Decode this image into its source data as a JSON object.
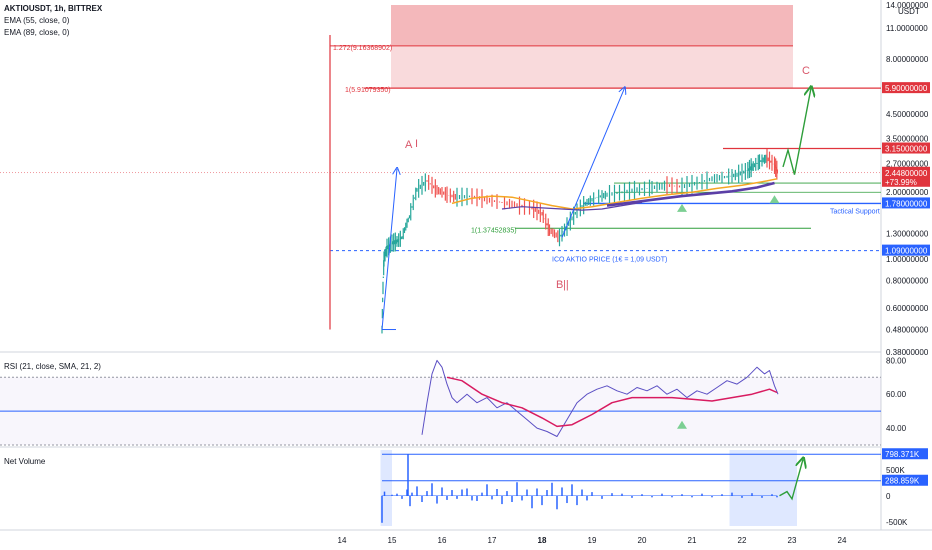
{
  "header": {
    "symbol_line": "AKTIOUSDT, 1h, BITTREX",
    "ema1": "EMA (55, close, 0)",
    "ema2": "EMA (89, close, 0)",
    "currency": "USDT"
  },
  "colors": {
    "red": "#e0343d",
    "blue": "#2962ff",
    "green": "#2e9e3a",
    "orange": "#f5a623",
    "purple": "#5b3fa6",
    "rsi_line": "#5b4fc4",
    "rsi_ma": "#d81b60",
    "volume": "#2962ff"
  },
  "chart_data": [
    {
      "type": "line",
      "name": "price",
      "scale": "log",
      "ylim": [
        0.38,
        14
      ],
      "x_ticks": [
        "14",
        "15",
        "16",
        "17",
        "18",
        "19",
        "20",
        "21",
        "22",
        "23",
        "24"
      ],
      "y_ticks": [
        "14.0000000",
        "11.0000000",
        "8.00000000",
        "6.00000000",
        "4.50000000",
        "3.50000000",
        "2.70000000",
        "2.00000000",
        "1.30000000",
        "1.00000000",
        "0.80000000",
        "0.60000000",
        "0.48000000",
        "0.38000000"
      ],
      "price_series": {
        "x": [
          14.8,
          14.84,
          14.9,
          15.0,
          15.1,
          15.2,
          15.35,
          15.5,
          15.7,
          15.9,
          16.1,
          16.3,
          16.6,
          16.9,
          17.2,
          17.5,
          17.8,
          18.0,
          18.15,
          18.35,
          18.5,
          18.7,
          18.9,
          19.1,
          19.3,
          19.6,
          19.9,
          20.2,
          20.5,
          20.8,
          21.1,
          21.4,
          21.7,
          21.9,
          22.1,
          22.2,
          22.35,
          22.5,
          22.65,
          22.72
        ],
        "y": [
          0.48,
          1.0,
          1.12,
          1.18,
          1.2,
          1.25,
          1.55,
          2.05,
          2.25,
          2.05,
          1.95,
          1.9,
          1.92,
          1.85,
          1.8,
          1.75,
          1.7,
          1.6,
          1.35,
          1.25,
          1.4,
          1.65,
          1.8,
          1.9,
          1.95,
          2.0,
          2.05,
          2.1,
          2.15,
          2.12,
          2.2,
          2.3,
          2.35,
          2.4,
          2.5,
          2.6,
          2.75,
          2.85,
          2.65,
          2.45
        ]
      },
      "ema55": {
        "x": [
          16.2,
          16.6,
          17.0,
          17.4,
          17.8,
          18.2,
          18.6,
          19.0,
          19.5,
          20.0,
          20.5,
          21.0,
          21.5,
          22.0,
          22.5,
          22.7
        ],
        "y": [
          1.78,
          1.88,
          1.92,
          1.9,
          1.82,
          1.74,
          1.68,
          1.72,
          1.8,
          1.88,
          1.95,
          2.0,
          2.08,
          2.15,
          2.25,
          2.3
        ]
      },
      "ema89_thin": {
        "x": [
          17.2,
          17.6,
          18.0,
          18.4,
          18.8,
          19.2,
          19.6,
          20.0
        ],
        "y": [
          1.68,
          1.72,
          1.7,
          1.68,
          1.66,
          1.68,
          1.74,
          1.8
        ]
      },
      "ema89_thick": {
        "x": [
          19.3,
          19.8,
          20.3,
          20.8,
          21.3,
          21.8,
          22.3,
          22.65
        ],
        "y": [
          1.74,
          1.8,
          1.86,
          1.92,
          1.97,
          2.02,
          2.1,
          2.2
        ]
      },
      "fib_zone": {
        "y_top": 14,
        "y_bottom": 5.9
      },
      "fib_levels": [
        {
          "label": "1.272(9.16368902)",
          "y": 9.16
        },
        {
          "label": "1(5.91079350)",
          "y": 5.91
        },
        {
          "label": "1(1.37452835)",
          "y": 1.3745
        }
      ],
      "price_labels": [
        {
          "text": "5.90000000",
          "y": 5.9,
          "color": "red"
        },
        {
          "text": "3.15000000",
          "y": 3.15,
          "color": "red"
        },
        {
          "text": "2.44800000",
          "y": 2.448,
          "color": "red",
          "sub": "+73.99%"
        },
        {
          "text": "1.78000000",
          "y": 1.78,
          "color": "blue"
        },
        {
          "text": "1.09000000",
          "y": 1.09,
          "color": "blue"
        }
      ],
      "annotations": {
        "A": "A",
        "A_mark": "I",
        "B": "B",
        "B_mark": "||",
        "C": "C",
        "ico": "ICO AKTIO PRICE (1€ = 1,09 USDT)",
        "tactical": "Tactical Support"
      }
    },
    {
      "type": "line",
      "name": "RSI",
      "title": "RSI (21, close, SMA, 21, 2)",
      "y_ticks": [
        "80.00",
        "60.00",
        "40.00"
      ],
      "ylim": [
        30,
        82
      ],
      "rsi": {
        "x": [
          15.6,
          15.7,
          15.8,
          15.9,
          16.0,
          16.1,
          16.2,
          16.3,
          16.5,
          16.7,
          16.9,
          17.1,
          17.3,
          17.5,
          17.7,
          17.9,
          18.1,
          18.3,
          18.5,
          18.7,
          18.9,
          19.1,
          19.3,
          19.5,
          19.7,
          19.9,
          20.1,
          20.3,
          20.5,
          20.7,
          20.9,
          21.1,
          21.3,
          21.5,
          21.7,
          21.9,
          22.1,
          22.3,
          22.45,
          22.55,
          22.65,
          22.72
        ],
        "y": [
          36,
          55,
          72,
          80,
          76,
          66,
          58,
          55,
          60,
          55,
          58,
          52,
          55,
          50,
          45,
          40,
          38,
          35,
          45,
          55,
          60,
          63,
          65,
          62,
          60,
          64,
          62,
          65,
          60,
          63,
          58,
          62,
          60,
          64,
          68,
          66,
          70,
          76,
          72,
          74,
          65,
          60
        ]
      },
      "rsi_ma": {
        "x": [
          16.1,
          16.4,
          16.8,
          17.2,
          17.6,
          18.0,
          18.3,
          18.6,
          19.0,
          19.4,
          19.8,
          20.2,
          20.6,
          21.0,
          21.4,
          21.8,
          22.2,
          22.55,
          22.7
        ],
        "y": [
          70,
          68,
          60,
          55,
          52,
          46,
          41,
          42,
          48,
          55,
          58,
          58,
          58,
          57,
          56,
          58,
          60,
          63,
          61
        ]
      }
    },
    {
      "type": "bar",
      "name": "Net Volume",
      "title": "Net Volume",
      "y_ticks": [
        "798.371K",
        "500K",
        "288.859K",
        "0",
        "-500K"
      ],
      "ylim": [
        -620,
        880
      ],
      "levels": [
        798.371,
        288.859
      ],
      "bars": {
        "x": [
          14.8,
          14.85,
          15.0,
          15.1,
          15.2,
          15.3,
          15.32,
          15.36,
          15.4,
          15.5,
          15.6,
          15.7,
          15.8,
          15.9,
          16.0,
          16.1,
          16.2,
          16.3,
          16.4,
          16.5,
          16.6,
          16.7,
          16.8,
          16.9,
          17.0,
          17.1,
          17.2,
          17.3,
          17.4,
          17.5,
          17.6,
          17.7,
          17.8,
          17.9,
          18.0,
          18.1,
          18.2,
          18.3,
          18.4,
          18.5,
          18.6,
          18.7,
          18.8,
          18.9,
          19.0,
          19.2,
          19.4,
          19.6,
          19.8,
          20.0,
          20.2,
          20.4,
          20.6,
          20.8,
          21.0,
          21.2,
          21.4,
          21.6,
          21.8,
          22.0,
          22.2,
          22.4,
          22.6,
          22.7
        ],
        "y": [
          -520,
          80,
          20,
          40,
          -60,
          120,
          798,
          -200,
          60,
          180,
          -120,
          90,
          240,
          -150,
          160,
          -80,
          110,
          -60,
          120,
          140,
          -90,
          -100,
          60,
          220,
          -70,
          130,
          -160,
          90,
          -120,
          260,
          -90,
          120,
          -240,
          140,
          -180,
          110,
          250,
          -260,
          160,
          -140,
          220,
          -180,
          120,
          -90,
          70,
          -60,
          50,
          40,
          -40,
          30,
          -30,
          40,
          -30,
          30,
          -30,
          40,
          -30,
          30,
          60,
          -40,
          50,
          -40,
          30,
          -30
        ]
      }
    }
  ]
}
